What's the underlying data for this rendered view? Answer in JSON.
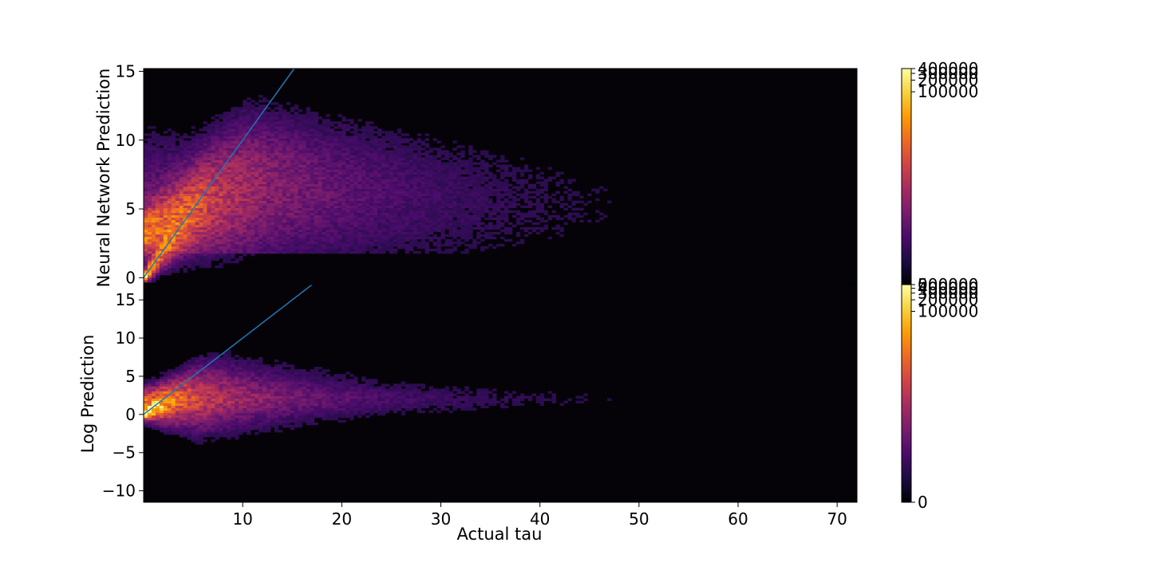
{
  "figure_background": "#ffffff",
  "colormap": {
    "name": "inferno",
    "stops": [
      "#000004",
      "#1b0c41",
      "#4a0c6b",
      "#781c6d",
      "#a52c60",
      "#cf4446",
      "#ed6925",
      "#fb9b06",
      "#f7d13d",
      "#fcffa4"
    ],
    "background": "#050308"
  },
  "identity_line_color": "#1f77b4",
  "chart_data": [
    {
      "type": "heatmap",
      "title": "",
      "xlabel": "",
      "ylabel": "Neural Network Prediction",
      "xlim": [
        0,
        72
      ],
      "ylim": [
        -0.5,
        15.2
      ],
      "x_ticks": [
        10,
        20,
        30,
        40,
        50,
        60,
        70
      ],
      "x_tick_labels_shown": false,
      "y_ticks": [
        0,
        5,
        10,
        15
      ],
      "y_tick_labels": [
        "0",
        "5",
        "10",
        "15"
      ],
      "grid": false,
      "identity_line": {
        "x": [
          0,
          15.2
        ],
        "y": [
          0,
          15.2
        ]
      },
      "density_description_values": {
        "core_x": [
          0,
          6
        ],
        "core_y": [
          0,
          6
        ],
        "tail_y_band": [
          2,
          10
        ]
      },
      "colorbar": {
        "min": 0,
        "max": 400000,
        "scale": "symlog",
        "ticks": [
          0,
          100000,
          200000,
          300000,
          400000
        ],
        "tick_labels": [
          "0",
          "100000",
          "200000",
          "300000",
          "400000"
        ]
      }
    },
    {
      "type": "heatmap",
      "title": "",
      "xlabel": "Actual tau",
      "ylabel": "Log Prediction",
      "xlim": [
        0,
        72
      ],
      "ylim": [
        -11.5,
        17
      ],
      "x_ticks": [
        10,
        20,
        30,
        40,
        50,
        60,
        70
      ],
      "x_tick_labels": [
        "10",
        "20",
        "30",
        "40",
        "50",
        "60",
        "70"
      ],
      "y_ticks": [
        -10,
        -5,
        0,
        5,
        10,
        15
      ],
      "y_tick_labels": [
        "−10",
        "−5",
        "0",
        "5",
        "10",
        "15"
      ],
      "grid": false,
      "identity_line": {
        "x": [
          0,
          17
        ],
        "y": [
          0,
          17
        ]
      },
      "colorbar": {
        "min": 0,
        "max": 500000,
        "scale": "symlog",
        "ticks": [
          0,
          100000,
          200000,
          300000,
          400000,
          500000
        ],
        "tick_labels": [
          "0",
          "100000",
          "200000",
          "300000",
          "400000",
          "500000"
        ]
      }
    }
  ]
}
